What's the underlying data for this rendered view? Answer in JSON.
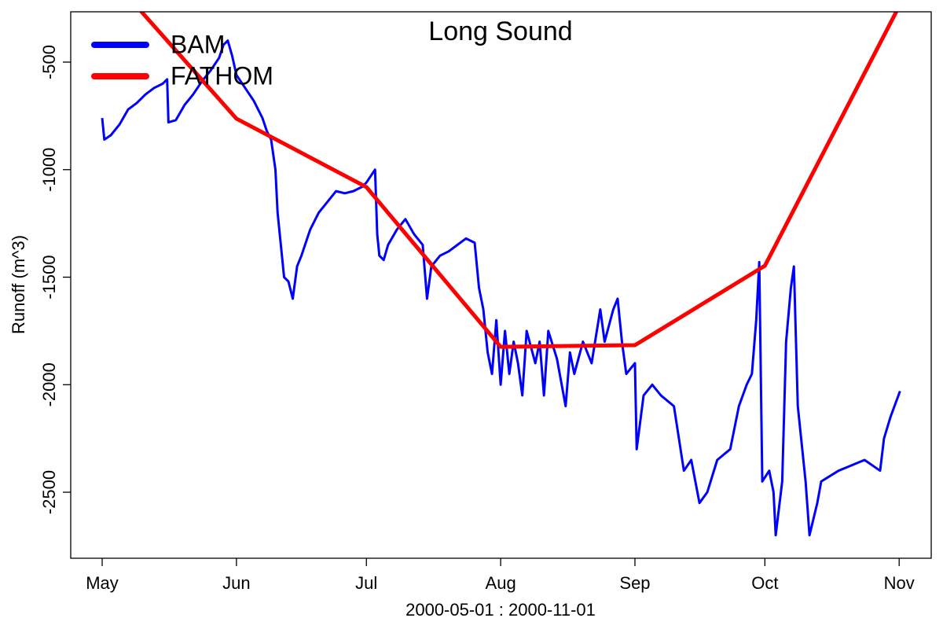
{
  "chart_data": {
    "type": "line",
    "title": "Long Sound",
    "xlabel": "2000-05-01 : 2000-11-01",
    "ylabel": "Runoff (m^3)",
    "xlim": [
      -7.26,
      191.4
    ],
    "ylim": [
      -2807,
      -266
    ],
    "xticks": [
      {
        "value": 0,
        "label": "May"
      },
      {
        "value": 31,
        "label": "Jun"
      },
      {
        "value": 61,
        "label": "Jul"
      },
      {
        "value": 92,
        "label": "Aug"
      },
      {
        "value": 123,
        "label": "Sep"
      },
      {
        "value": 153,
        "label": "Oct"
      },
      {
        "value": 184,
        "label": "Nov"
      }
    ],
    "yticks": [
      -500,
      -1000,
      -1500,
      -2000,
      -2500
    ],
    "legend": "top-left",
    "series": [
      {
        "name": "BAM",
        "color": "#0000ff",
        "x": [
          0,
          0.5,
          2,
          4,
          6,
          8,
          10,
          12,
          14,
          15,
          15.3,
          17,
          19,
          21,
          23,
          25,
          27,
          28,
          29,
          30,
          31,
          33,
          35,
          37,
          38,
          39,
          40,
          40.5,
          41,
          42,
          43,
          44,
          45,
          46,
          48,
          50,
          52,
          54,
          56,
          58,
          60,
          61,
          62,
          63,
          63.5,
          64,
          65,
          66,
          68,
          70,
          72,
          74,
          75,
          76,
          78,
          80,
          82,
          84,
          86,
          87,
          88,
          89,
          90,
          91,
          92,
          93,
          94,
          95,
          96,
          97,
          98,
          100,
          101,
          102,
          103,
          105,
          107,
          108,
          109,
          111,
          113,
          115,
          116,
          118,
          119,
          120,
          121,
          123,
          123.4,
          125,
          127,
          129,
          132,
          134.3,
          136,
          137.9,
          139.7,
          142,
          145,
          147,
          148.8,
          150,
          151,
          151.7,
          152.4,
          154,
          155,
          155.5,
          157,
          157.9,
          159,
          159.7,
          160.6,
          162.4,
          163.3,
          165.1,
          166,
          170,
          172.4,
          176,
          179.6,
          180.5,
          182,
          184.2
        ],
        "values": [
          -760,
          -860,
          -840,
          -790,
          -720,
          -690,
          -650,
          -620,
          -600,
          -580,
          -780,
          -770,
          -700,
          -650,
          -590,
          -540,
          -480,
          -420,
          -400,
          -470,
          -560,
          -620,
          -680,
          -760,
          -820,
          -860,
          -1000,
          -1200,
          -1300,
          -1500,
          -1520,
          -1600,
          -1450,
          -1400,
          -1280,
          -1200,
          -1150,
          -1100,
          -1110,
          -1100,
          -1080,
          -1060,
          -1030,
          -1000,
          -1300,
          -1400,
          -1420,
          -1350,
          -1280,
          -1230,
          -1300,
          -1350,
          -1600,
          -1450,
          -1400,
          -1380,
          -1350,
          -1320,
          -1340,
          -1550,
          -1650,
          -1850,
          -1950,
          -1700,
          -2000,
          -1750,
          -1950,
          -1800,
          -1900,
          -2050,
          -1750,
          -1900,
          -1800,
          -2050,
          -1750,
          -1880,
          -2100,
          -1850,
          -1950,
          -1800,
          -1900,
          -1650,
          -1800,
          -1650,
          -1600,
          -1800,
          -1950,
          -1900,
          -2300,
          -2050,
          -2000,
          -2050,
          -2100,
          -2400,
          -2350,
          -2550,
          -2500,
          -2350,
          -2300,
          -2100,
          -2000,
          -1950,
          -1700,
          -1430,
          -2450,
          -2400,
          -2500,
          -2700,
          -2450,
          -1800,
          -1550,
          -1450,
          -2100,
          -2450,
          -2700,
          -2550,
          -2450,
          -2400,
          -2380,
          -2350,
          -2400,
          -2250,
          -2150,
          -2030
        ]
      },
      {
        "name": "FATHOM",
        "color": "#ff0000",
        "x": [
          0,
          31,
          61,
          92,
          123,
          153,
          184
        ],
        "values": [
          -60,
          -763,
          -1081,
          -1824,
          -1816,
          -1447,
          -240
        ]
      }
    ]
  }
}
